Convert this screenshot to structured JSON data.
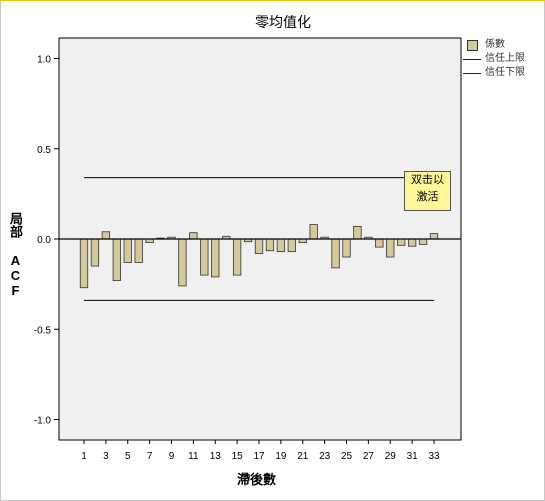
{
  "chart_data": {
    "type": "bar",
    "title": "零均值化",
    "xlabel": "滯後數",
    "ylabel": "局部 ACF",
    "ylim": [
      -1.1,
      1.1
    ],
    "yticks": [
      "1.0",
      "0.5",
      "0.0",
      "-0.5",
      "-1.0"
    ],
    "ytick_values": [
      1.0,
      0.5,
      0.0,
      -0.5,
      -1.0
    ],
    "xticks": [
      "1",
      "3",
      "5",
      "7",
      "9",
      "11",
      "13",
      "15",
      "17",
      "19",
      "21",
      "23",
      "25",
      "27",
      "29",
      "31",
      "33"
    ],
    "categories": [
      1,
      2,
      3,
      4,
      5,
      6,
      7,
      8,
      9,
      10,
      11,
      12,
      13,
      14,
      15,
      16,
      17,
      18,
      19,
      20,
      21,
      22,
      23,
      24,
      25,
      26,
      27,
      28,
      29,
      30,
      31,
      32,
      33
    ],
    "series": [
      {
        "name": "係數",
        "values": [
          -0.27,
          -0.15,
          0.04,
          -0.23,
          -0.13,
          -0.13,
          -0.02,
          0.005,
          0.01,
          -0.26,
          0.035,
          -0.2,
          -0.21,
          0.015,
          -0.2,
          -0.015,
          -0.08,
          -0.065,
          -0.07,
          -0.07,
          -0.02,
          0.08,
          0.01,
          -0.16,
          -0.1,
          0.07,
          0.01,
          -0.045,
          -0.1,
          -0.035,
          -0.04,
          -0.03,
          0.03
        ]
      }
    ],
    "confidence_upper": 0.34,
    "confidence_lower": -0.34,
    "legend": [
      {
        "label": "係數",
        "kind": "bar"
      },
      {
        "label": "信任上限",
        "kind": "line"
      },
      {
        "label": "信任下限",
        "kind": "line"
      }
    ],
    "legend_position": "top-right",
    "grid": false,
    "bar_color": "#d4c99a",
    "plot_bg": "#f0f0f0"
  },
  "badge": {
    "line1": "双击以",
    "line2": "激活"
  }
}
